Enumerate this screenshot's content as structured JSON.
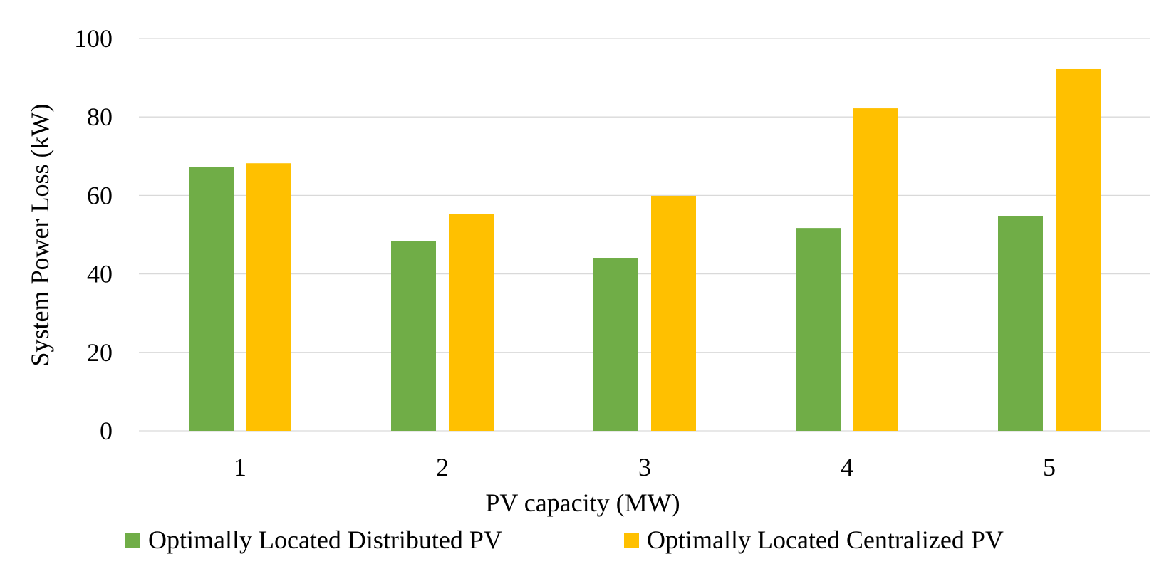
{
  "chart_data": {
    "type": "bar",
    "title": "",
    "xlabel": "PV capacity (MW)",
    "ylabel": "System Power Loss (kW)",
    "categories": [
      "1",
      "2",
      "3",
      "4",
      "5"
    ],
    "ylim": [
      0,
      100
    ],
    "yticks": [
      0,
      20,
      40,
      60,
      80,
      100
    ],
    "grid": true,
    "legend_position": "bottom",
    "series": [
      {
        "name": "Optimally Located Distributed PV",
        "color": "#70AD47",
        "values": [
          67.2,
          48.3,
          44.1,
          51.7,
          54.8
        ]
      },
      {
        "name": "Optimally Located Centralized PV",
        "color": "#FFC000",
        "values": [
          68.2,
          55.2,
          59.9,
          82.2,
          92.2
        ]
      }
    ]
  }
}
